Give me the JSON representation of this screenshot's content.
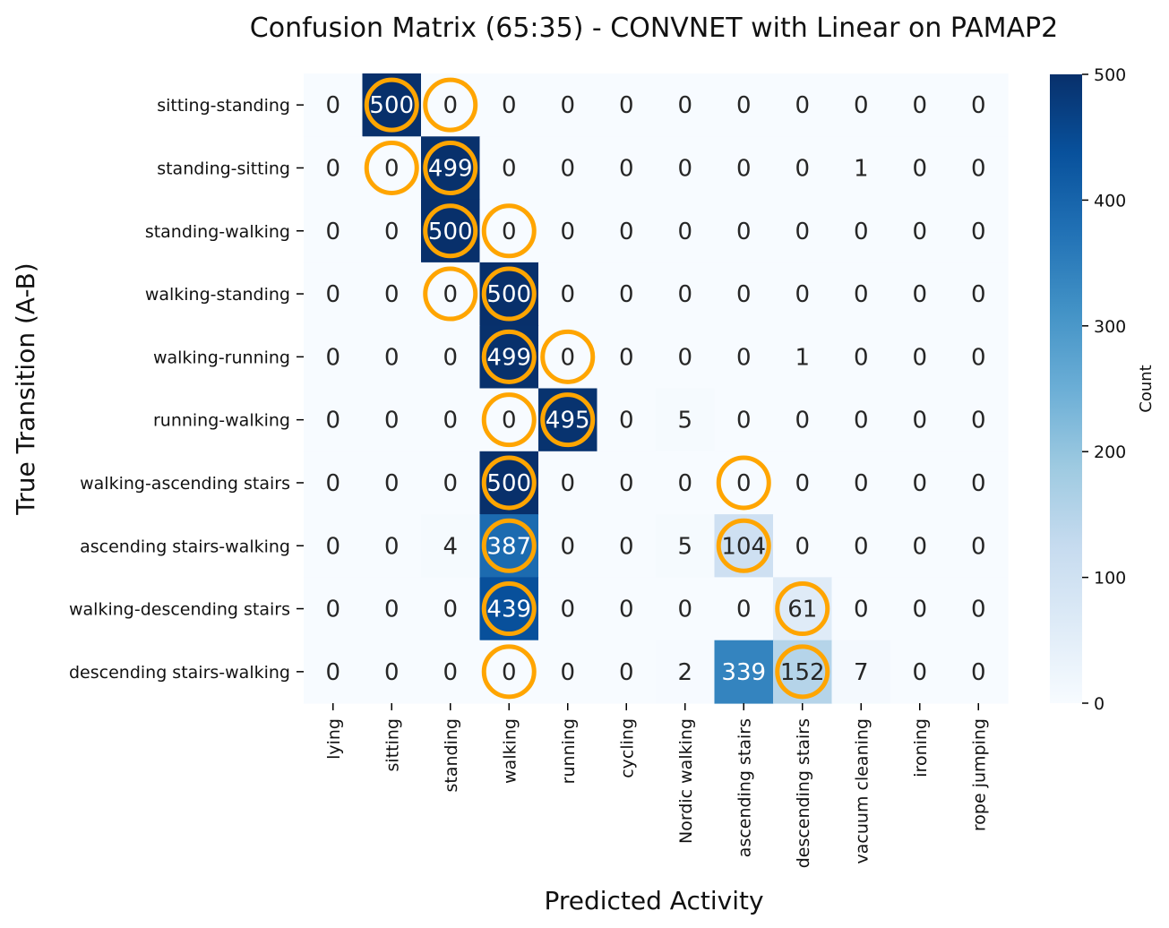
{
  "chart_data": {
    "type": "heatmap",
    "title": "Confusion Matrix (65:35) - CONVNET with Linear on PAMAP2",
    "xlabel": "Predicted Activity",
    "ylabel": "True Transition (A-B)",
    "colorbar_label": "Count",
    "colorbar_ticks": [
      "0",
      "100",
      "200",
      "300",
      "400",
      "500"
    ],
    "value_range": [
      0,
      500
    ],
    "colormap": "Blues",
    "highlight_color": "#FFA500",
    "rows": [
      "sitting-standing",
      "standing-sitting",
      "standing-walking",
      "walking-standing",
      "walking-running",
      "running-walking",
      "walking-ascending stairs",
      "ascending stairs-walking",
      "walking-descending stairs",
      "descending stairs-walking"
    ],
    "columns": [
      "lying",
      "sitting",
      "standing",
      "walking",
      "running",
      "cycling",
      "Nordic walking",
      "ascending stairs",
      "descending stairs",
      "vacuum cleaning",
      "ironing",
      "rope jumping"
    ],
    "values": [
      [
        0,
        500,
        0,
        0,
        0,
        0,
        0,
        0,
        0,
        0,
        0,
        0
      ],
      [
        0,
        0,
        499,
        0,
        0,
        0,
        0,
        0,
        0,
        1,
        0,
        0
      ],
      [
        0,
        0,
        500,
        0,
        0,
        0,
        0,
        0,
        0,
        0,
        0,
        0
      ],
      [
        0,
        0,
        0,
        500,
        0,
        0,
        0,
        0,
        0,
        0,
        0,
        0
      ],
      [
        0,
        0,
        0,
        499,
        0,
        0,
        0,
        0,
        1,
        0,
        0,
        0
      ],
      [
        0,
        0,
        0,
        0,
        495,
        0,
        5,
        0,
        0,
        0,
        0,
        0
      ],
      [
        0,
        0,
        0,
        500,
        0,
        0,
        0,
        0,
        0,
        0,
        0,
        0
      ],
      [
        0,
        0,
        4,
        387,
        0,
        0,
        5,
        104,
        0,
        0,
        0,
        0
      ],
      [
        0,
        0,
        0,
        439,
        0,
        0,
        0,
        0,
        61,
        0,
        0,
        0
      ],
      [
        0,
        0,
        0,
        0,
        0,
        0,
        2,
        339,
        152,
        7,
        0,
        0
      ]
    ],
    "highlighted_cells": [
      [
        0,
        1
      ],
      [
        0,
        2
      ],
      [
        1,
        1
      ],
      [
        1,
        2
      ],
      [
        2,
        2
      ],
      [
        2,
        3
      ],
      [
        3,
        2
      ],
      [
        3,
        3
      ],
      [
        4,
        3
      ],
      [
        4,
        4
      ],
      [
        5,
        3
      ],
      [
        5,
        4
      ],
      [
        6,
        3
      ],
      [
        6,
        7
      ],
      [
        7,
        3
      ],
      [
        7,
        7
      ],
      [
        8,
        3
      ],
      [
        8,
        8
      ],
      [
        9,
        3
      ],
      [
        9,
        8
      ]
    ]
  }
}
